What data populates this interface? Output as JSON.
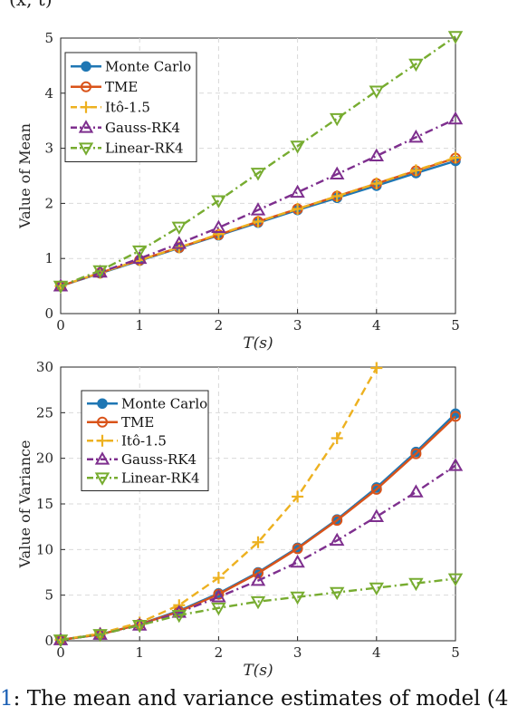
{
  "top_fragment": "(x, t)",
  "caption": {
    "fig_label": "1",
    "text": ": The mean and variance estimates of model (4"
  },
  "colors": {
    "monte_carlo": "#1f77b4",
    "tme": "#d95319",
    "ito": "#edb120",
    "gauss": "#7e2f8e",
    "linear": "#77ac30"
  },
  "chart_data": [
    {
      "type": "line",
      "xlabel": "T(s)",
      "ylabel": "Value of Mean",
      "xlim": [
        0,
        5
      ],
      "ylim": [
        0,
        5
      ],
      "xticks": [
        "0",
        "1",
        "2",
        "3",
        "4",
        "5"
      ],
      "yticks": [
        "0",
        "1",
        "2",
        "3",
        "4",
        "5"
      ],
      "grid": true,
      "legend_position": "top-left",
      "x": [
        0,
        0.5,
        1,
        1.5,
        2,
        2.5,
        3,
        3.5,
        4,
        4.5,
        5
      ],
      "series": [
        {
          "name": "Monte Carlo",
          "color": "#1f77b4",
          "dash": "solid",
          "marker": "circle",
          "values": [
            0.5,
            0.73,
            0.96,
            1.19,
            1.42,
            1.65,
            1.88,
            2.1,
            2.32,
            2.55,
            2.77
          ]
        },
        {
          "name": "TME",
          "color": "#d95319",
          "dash": "solid",
          "marker": "open-circle",
          "values": [
            0.5,
            0.74,
            0.97,
            1.2,
            1.43,
            1.67,
            1.9,
            2.13,
            2.36,
            2.59,
            2.82
          ]
        },
        {
          "name": "Itô-1.5",
          "color": "#edb120",
          "dash": "dash",
          "marker": "plus",
          "values": [
            0.5,
            0.74,
            0.97,
            1.2,
            1.44,
            1.67,
            1.9,
            2.13,
            2.36,
            2.6,
            2.83
          ]
        },
        {
          "name": "Gauss-RK4",
          "color": "#7e2f8e",
          "dash": "dashdot",
          "marker": "triangle-up",
          "values": [
            0.5,
            0.75,
            1.0,
            1.27,
            1.56,
            1.88,
            2.2,
            2.53,
            2.86,
            3.2,
            3.53
          ]
        },
        {
          "name": "Linear-RK4",
          "color": "#77ac30",
          "dash": "dashdot",
          "marker": "triangle-down",
          "values": [
            0.5,
            0.78,
            1.14,
            1.57,
            2.05,
            2.55,
            3.04,
            3.54,
            4.04,
            4.53,
            5.03
          ]
        }
      ]
    },
    {
      "type": "line",
      "xlabel": "T(s)",
      "ylabel": "Value of Variance",
      "xlim": [
        0,
        5
      ],
      "ylim": [
        0,
        30
      ],
      "xticks": [
        "0",
        "1",
        "2",
        "3",
        "4",
        "5"
      ],
      "yticks": [
        "0",
        "5",
        "10",
        "15",
        "20",
        "25",
        "30"
      ],
      "grid": true,
      "legend_position": "top-left",
      "x": [
        0,
        0.5,
        1,
        1.5,
        2,
        2.5,
        3,
        3.5,
        4,
        4.5,
        5
      ],
      "series": [
        {
          "name": "Monte Carlo",
          "color": "#1f77b4",
          "dash": "solid",
          "marker": "circle",
          "x": [
            0,
            0.5,
            1,
            1.5,
            2,
            2.5,
            3,
            3.5,
            4,
            4.5,
            5
          ],
          "values": [
            0.1,
            0.7,
            1.8,
            3.3,
            5.2,
            7.5,
            10.2,
            13.3,
            16.8,
            20.7,
            24.9
          ]
        },
        {
          "name": "TME",
          "color": "#d95319",
          "dash": "solid",
          "marker": "open-circle",
          "x": [
            0,
            0.5,
            1,
            1.5,
            2,
            2.5,
            3,
            3.5,
            4,
            4.5,
            5
          ],
          "values": [
            0.1,
            0.7,
            1.8,
            3.2,
            5.1,
            7.4,
            10.1,
            13.2,
            16.6,
            20.5,
            24.6
          ]
        },
        {
          "name": "Itô-1.5",
          "color": "#edb120",
          "dash": "dash",
          "marker": "plus",
          "x": [
            0,
            0.5,
            1,
            1.5,
            2,
            2.5,
            3,
            3.5,
            4
          ],
          "values": [
            0.1,
            0.8,
            2.0,
            3.9,
            6.9,
            10.8,
            15.8,
            22.2,
            29.9
          ]
        },
        {
          "name": "Gauss-RK4",
          "color": "#7e2f8e",
          "dash": "dashdot",
          "marker": "triangle-up",
          "x": [
            0,
            0.5,
            1,
            1.5,
            2,
            2.5,
            3,
            3.5,
            4,
            4.5,
            5
          ],
          "values": [
            0.1,
            0.7,
            1.7,
            3.1,
            4.8,
            6.6,
            8.6,
            11.0,
            13.6,
            16.3,
            19.2
          ]
        },
        {
          "name": "Linear-RK4",
          "color": "#77ac30",
          "dash": "dashdot",
          "marker": "triangle-down",
          "x": [
            0,
            0.5,
            1,
            1.5,
            2,
            2.5,
            3,
            3.5,
            4,
            4.5,
            5
          ],
          "values": [
            0.1,
            0.7,
            1.7,
            2.8,
            3.6,
            4.3,
            4.8,
            5.3,
            5.8,
            6.3,
            6.8
          ]
        }
      ]
    }
  ]
}
